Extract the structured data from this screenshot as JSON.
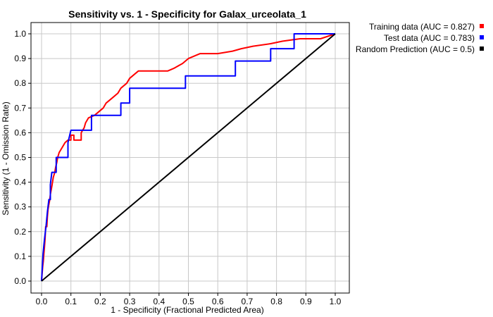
{
  "chart_data": {
    "type": "line",
    "title": "Sensitivity vs. 1 - Specificity for Galax_urceolata_1",
    "xlabel": "1 - Specificity  (Fractional Predicted Area)",
    "ylabel": "Sensitivity  (1 - Omission Rate)",
    "xlim": [
      0,
      1.0
    ],
    "ylim": [
      0,
      1.0
    ],
    "grid": true,
    "legend_position": "top-right, outside plot",
    "x_ticks": [
      "0.0",
      "0.1",
      "0.2",
      "0.3",
      "0.4",
      "0.5",
      "0.6",
      "0.7",
      "0.8",
      "0.9",
      "1.0"
    ],
    "y_ticks": [
      "0.0",
      "0.1",
      "0.2",
      "0.3",
      "0.4",
      "0.5",
      "0.6",
      "0.7",
      "0.8",
      "0.9",
      "1.0"
    ],
    "series": [
      {
        "name": "Training data (AUC = 0.827)",
        "color": "#ff0000",
        "points": [
          [
            0,
            0
          ],
          [
            0.002,
            0.03
          ],
          [
            0.004,
            0.06
          ],
          [
            0.006,
            0.08
          ],
          [
            0.008,
            0.11
          ],
          [
            0.01,
            0.14
          ],
          [
            0.012,
            0.17
          ],
          [
            0.014,
            0.22
          ],
          [
            0.018,
            0.22
          ],
          [
            0.02,
            0.26
          ],
          [
            0.022,
            0.29
          ],
          [
            0.025,
            0.31
          ],
          [
            0.028,
            0.33
          ],
          [
            0.03,
            0.35
          ],
          [
            0.033,
            0.37
          ],
          [
            0.036,
            0.39
          ],
          [
            0.04,
            0.42
          ],
          [
            0.045,
            0.44
          ],
          [
            0.048,
            0.46
          ],
          [
            0.052,
            0.48
          ],
          [
            0.055,
            0.5
          ],
          [
            0.06,
            0.52
          ],
          [
            0.065,
            0.53
          ],
          [
            0.07,
            0.54
          ],
          [
            0.08,
            0.56
          ],
          [
            0.09,
            0.57
          ],
          [
            0.1,
            0.57
          ],
          [
            0.1,
            0.59
          ],
          [
            0.11,
            0.59
          ],
          [
            0.11,
            0.57
          ],
          [
            0.135,
            0.57
          ],
          [
            0.135,
            0.6
          ],
          [
            0.145,
            0.62
          ],
          [
            0.15,
            0.64
          ],
          [
            0.16,
            0.66
          ],
          [
            0.18,
            0.67
          ],
          [
            0.2,
            0.69
          ],
          [
            0.21,
            0.7
          ],
          [
            0.22,
            0.72
          ],
          [
            0.24,
            0.74
          ],
          [
            0.26,
            0.76
          ],
          [
            0.27,
            0.78
          ],
          [
            0.29,
            0.8
          ],
          [
            0.3,
            0.82
          ],
          [
            0.32,
            0.84
          ],
          [
            0.33,
            0.85
          ],
          [
            0.36,
            0.85
          ],
          [
            0.4,
            0.85
          ],
          [
            0.43,
            0.85
          ],
          [
            0.45,
            0.86
          ],
          [
            0.48,
            0.88
          ],
          [
            0.5,
            0.9
          ],
          [
            0.54,
            0.92
          ],
          [
            0.6,
            0.92
          ],
          [
            0.65,
            0.93
          ],
          [
            0.68,
            0.94
          ],
          [
            0.72,
            0.95
          ],
          [
            0.78,
            0.96
          ],
          [
            0.82,
            0.97
          ],
          [
            0.88,
            0.98
          ],
          [
            0.95,
            0.98
          ],
          [
            1.0,
            1.0
          ]
        ]
      },
      {
        "name": "Test data (AUC = 0.783)",
        "color": "#0000ff",
        "points": [
          [
            0,
            0
          ],
          [
            0.005,
            0.11
          ],
          [
            0.01,
            0.17
          ],
          [
            0.015,
            0.22
          ],
          [
            0.02,
            0.28
          ],
          [
            0.025,
            0.33
          ],
          [
            0.03,
            0.33
          ],
          [
            0.03,
            0.39
          ],
          [
            0.035,
            0.44
          ],
          [
            0.05,
            0.44
          ],
          [
            0.05,
            0.5
          ],
          [
            0.09,
            0.5
          ],
          [
            0.09,
            0.56
          ],
          [
            0.1,
            0.61
          ],
          [
            0.17,
            0.61
          ],
          [
            0.17,
            0.67
          ],
          [
            0.27,
            0.67
          ],
          [
            0.27,
            0.72
          ],
          [
            0.3,
            0.72
          ],
          [
            0.3,
            0.78
          ],
          [
            0.49,
            0.78
          ],
          [
            0.49,
            0.83
          ],
          [
            0.66,
            0.83
          ],
          [
            0.66,
            0.89
          ],
          [
            0.78,
            0.89
          ],
          [
            0.78,
            0.94
          ],
          [
            0.86,
            0.94
          ],
          [
            0.86,
            1.0
          ],
          [
            1.0,
            1.0
          ]
        ]
      },
      {
        "name": "Random Prediction (AUC = 0.5)",
        "color": "#000000",
        "points": [
          [
            0,
            0
          ],
          [
            1.0,
            1.0
          ]
        ]
      }
    ]
  }
}
